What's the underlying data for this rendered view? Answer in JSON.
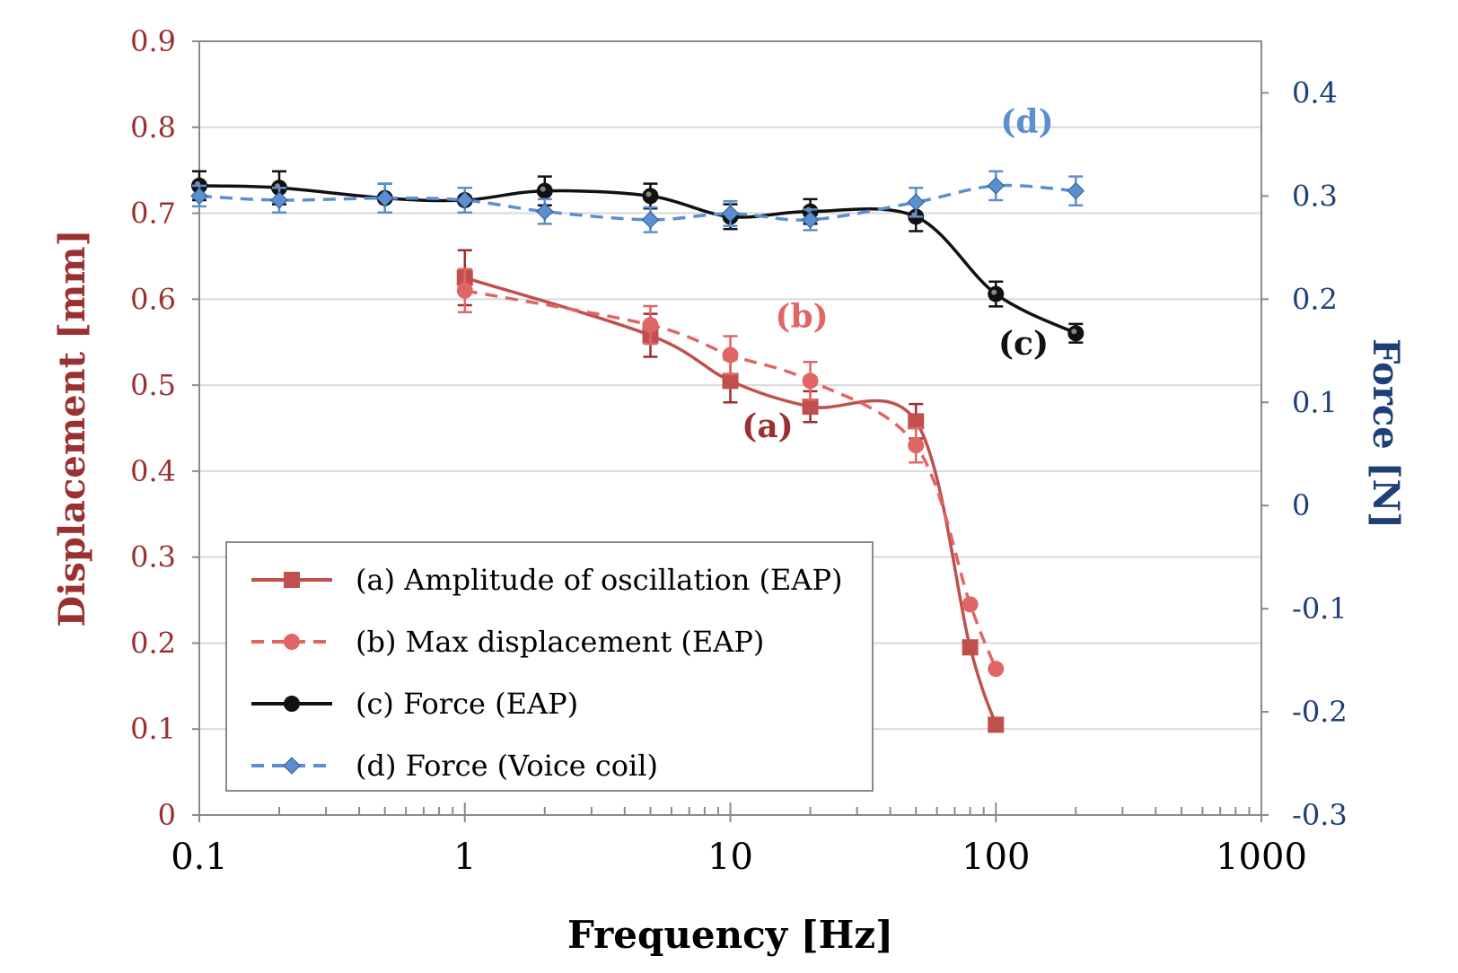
{
  "chart_data": {
    "type": "line",
    "xlabel": "Frequency [Hz]",
    "ylabel_left": "Displacement [mm]",
    "ylabel_right": "Force [N]",
    "x_scale": "log",
    "xlim": [
      0.1,
      1000
    ],
    "ylim_left": [
      0,
      0.9
    ],
    "ylim_right": [
      -0.3,
      0.45
    ],
    "x_ticks": [
      0.1,
      1,
      10,
      100,
      1000
    ],
    "x_tick_labels": [
      "0.1",
      "1",
      "10",
      "100",
      "1000"
    ],
    "y_left_ticks": [
      0,
      0.1,
      0.2,
      0.3,
      0.4,
      0.5,
      0.6,
      0.7,
      0.8,
      0.9
    ],
    "y_left_tick_labels": [
      "0",
      "0.1",
      "0.2",
      "0.3",
      "0.4",
      "0.5",
      "0.6",
      "0.7",
      "0.8",
      "0.9"
    ],
    "y_right_ticks": [
      -0.3,
      -0.2,
      -0.1,
      0,
      0.1,
      0.2,
      0.3,
      0.4
    ],
    "y_right_tick_labels": [
      "-0.3",
      "-0.2",
      "-0.1",
      "0",
      "0.1",
      "0.2",
      "0.3",
      "0.4"
    ],
    "grid": "horizontal",
    "legend_position": "bottom-left",
    "colors": {
      "left_axis": "#9b3030",
      "right_axis": "#1f3f78",
      "series_a": "#c0504d",
      "series_b": "#e06666",
      "series_c": "#111111",
      "series_d": "#5b8fcf"
    },
    "series": [
      {
        "name": "(a) Amplitude of oscillation (EAP)",
        "label": "(a)",
        "axis": "left",
        "marker": "square",
        "dash": false,
        "x": [
          1,
          5,
          10,
          20,
          50,
          80,
          100
        ],
        "y": [
          0.625,
          0.558,
          0.505,
          0.475,
          0.458,
          0.195,
          0.105
        ],
        "err": [
          0.032,
          0.025,
          0.025,
          0.018,
          0.02,
          0,
          0
        ]
      },
      {
        "name": "(b) Max displacement (EAP)",
        "label": "(b)",
        "axis": "left",
        "marker": "circle",
        "dash": true,
        "x": [
          1,
          5,
          10,
          20,
          50,
          80,
          100
        ],
        "y": [
          0.61,
          0.57,
          0.535,
          0.505,
          0.43,
          0.245,
          0.17
        ],
        "err": [
          0.025,
          0.022,
          0.022,
          0.022,
          0.02,
          0,
          0
        ]
      },
      {
        "name": "(c) Force (EAP)",
        "label": "(c)",
        "axis": "right",
        "marker": "circle",
        "dash": false,
        "x": [
          0.1,
          0.2,
          0.5,
          1,
          2,
          5,
          10,
          20,
          50,
          100,
          200
        ],
        "y": [
          0.31,
          0.308,
          0.298,
          0.296,
          0.305,
          0.3,
          0.28,
          0.285,
          0.28,
          0.205,
          0.167
        ],
        "err": [
          0.014,
          0.016,
          0.014,
          0.012,
          0.014,
          0.012,
          0.012,
          0.012,
          0.014,
          0.012,
          0.009
        ]
      },
      {
        "name": "(d) Force (Voice coil)",
        "label": "(d)",
        "axis": "right",
        "marker": "diamond",
        "dash": true,
        "x": [
          0.1,
          0.2,
          0.5,
          1,
          2,
          5,
          10,
          20,
          50,
          100,
          200
        ],
        "y": [
          0.3,
          0.296,
          0.298,
          0.296,
          0.285,
          0.277,
          0.283,
          0.277,
          0.294,
          0.31,
          0.305
        ],
        "err": [
          0.01,
          0.012,
          0.014,
          0.012,
          0.012,
          0.012,
          0.012,
          0.01,
          0.014,
          0.014,
          0.014
        ]
      }
    ]
  }
}
